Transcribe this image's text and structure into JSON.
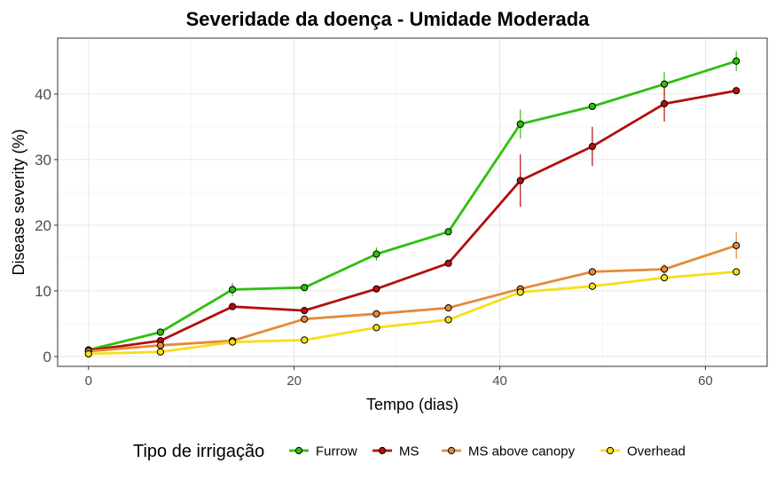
{
  "chart_data": {
    "type": "line",
    "title": "Severidade da doença - Umidade Moderada",
    "xlabel": "Tempo (dias)",
    "ylabel": "Disease severity (%)",
    "xlim": [
      -3,
      66
    ],
    "ylim": [
      -1.5,
      48.5
    ],
    "xticks": [
      0,
      20,
      40,
      60
    ],
    "yticks": [
      0,
      10,
      20,
      30,
      40
    ],
    "grid": true,
    "legend_position": "bottom",
    "legend_title": "Tipo de irrigação",
    "x": [
      0,
      7,
      14,
      21,
      28,
      35,
      42,
      49,
      56,
      63
    ],
    "series": [
      {
        "name": "Furrow",
        "color": "#2fbf0f",
        "values": [
          1.0,
          3.7,
          10.2,
          10.5,
          15.6,
          19.0,
          35.4,
          38.1,
          41.5,
          45.0
        ],
        "errors": [
          0.3,
          0.4,
          1.0,
          0.5,
          1.0,
          0.4,
          2.2,
          0.4,
          1.8,
          1.5
        ]
      },
      {
        "name": "MS",
        "color": "#b30f0f",
        "values": [
          0.9,
          2.4,
          7.6,
          7.0,
          10.3,
          14.2,
          26.8,
          32.0,
          38.5,
          40.5
        ],
        "errors": [
          0.3,
          0.4,
          0.4,
          0.5,
          0.5,
          0.4,
          4.0,
          3.0,
          2.7,
          0.4
        ]
      },
      {
        "name": "MS above canopy",
        "color": "#e5893a",
        "values": [
          0.8,
          1.7,
          2.4,
          5.7,
          6.5,
          7.4,
          10.3,
          12.9,
          13.3,
          16.9
        ],
        "errors": [
          0.2,
          0.3,
          0.3,
          0.4,
          0.4,
          0.3,
          0.5,
          0.6,
          0.8,
          2.0
        ]
      },
      {
        "name": "Overhead",
        "color": "#f5df1a",
        "values": [
          0.4,
          0.7,
          2.2,
          2.5,
          4.4,
          5.6,
          9.8,
          10.7,
          12.0,
          12.9
        ],
        "errors": [
          0.2,
          0.2,
          0.3,
          0.3,
          0.4,
          0.3,
          0.5,
          0.4,
          0.5,
          0.4
        ]
      }
    ]
  }
}
